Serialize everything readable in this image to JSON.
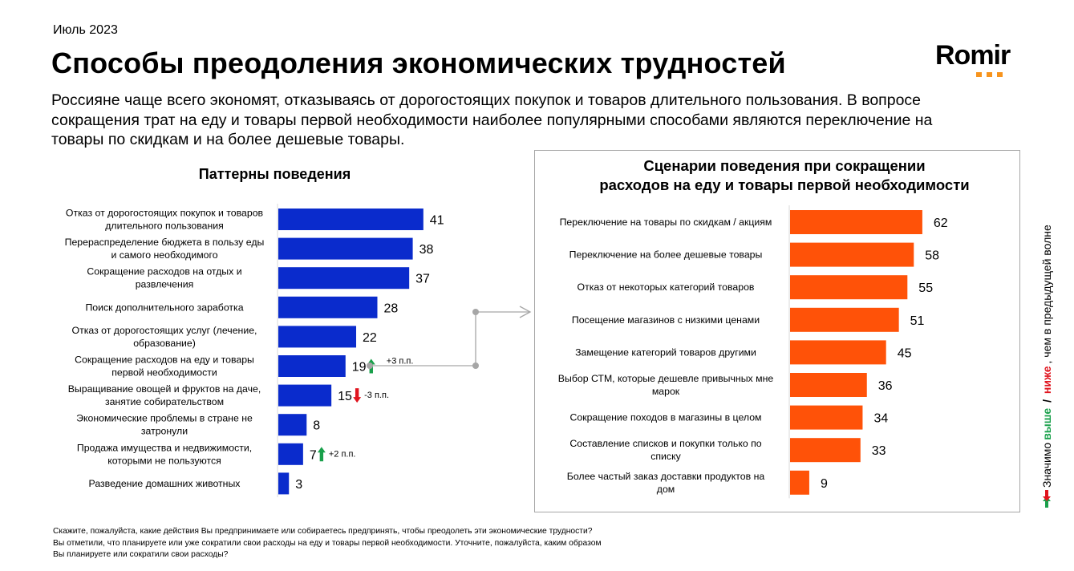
{
  "header": {
    "date": "Июль 2023",
    "title": "Способы преодоления экономических трудностей",
    "subtitle": "Россияне чаще всего экономят, отказываясь от дорогостоящих покупок и товаров длительного пользования. В вопросе сокращения трат на еду и товары первой необходимости наиболее популярными способами являются переключение на товары по скидкам и на более дешевые товары.",
    "logo_text": "Romir",
    "logo_accent": "#f7941d"
  },
  "chart_data": [
    {
      "type": "bar",
      "orientation": "horizontal",
      "title": "Паттерны поведения",
      "color": "#0a2bcc",
      "xlim": [
        0,
        45
      ],
      "categories": [
        "Отказ от дорогостоящих покупок и товаров длительного пользования",
        "Перераспределение бюджета в пользу еды и самого необходимого",
        "Сокращение расходов на отдых и развлечения",
        "Поиск дополнительного заработка",
        "Отказ от дорогостоящих услуг (лечение, образование)",
        "Сокращение расходов на еду и товары первой необходимости",
        "Выращивание овощей и фруктов на даче, занятие собирательством",
        "Экономические проблемы в стране не затронули",
        "Продажа имущества и недвижимости, которыми не пользуются",
        "Разведение домашних животных"
      ],
      "label_lines": [
        [
          "Отказ от дорогостоящих покупок и товаров",
          "длительного пользования"
        ],
        [
          "Перераспределение бюджета в пользу еды",
          "и самого необходимого"
        ],
        [
          "Сокращение расходов на отдых и",
          "развлечения"
        ],
        [
          "Поиск дополнительного заработка"
        ],
        [
          "Отказ от дорогостоящих услуг (лечение,",
          "образование)"
        ],
        [
          "Сокращение расходов на еду и товары",
          "первой необходимости"
        ],
        [
          "Выращивание овощей и фруктов на даче,",
          "занятие собирательством"
        ],
        [
          "Экономические проблемы в стране не",
          "затронули"
        ],
        [
          "Продажа имущества и недвижимости,",
          "которыми не пользуются"
        ],
        [
          "Разведение домашних животных"
        ]
      ],
      "values": [
        41,
        38,
        37,
        28,
        22,
        19,
        15,
        8,
        7,
        3
      ],
      "changes": [
        null,
        null,
        null,
        null,
        null,
        {
          "direction": "up",
          "text": "+3 п.п."
        },
        {
          "direction": "down",
          "text": "-3 п.п."
        },
        null,
        {
          "direction": "up",
          "text": "+2 п.п."
        },
        null
      ]
    },
    {
      "type": "bar",
      "orientation": "horizontal",
      "title": "Сценарии поведения при сокращении расходов на еду и товары первой необходимости",
      "title_lines": [
        "Сценарии поведения при сокращении",
        "расходов на еду и товары первой необходимости"
      ],
      "color": "#ff5208",
      "xlim": [
        0,
        70
      ],
      "categories": [
        "Переключение на товары по скидкам / акциям",
        "Переключение на более дешевые товары",
        "Отказ от некоторых категорий товаров",
        "Посещение магазинов с низкими ценами",
        "Замещение категорий товаров другими",
        "Выбор СТМ, которые дешевле привычных мне марок",
        "Сокращение походов в магазины в целом",
        "Составление списков и покупки только по списку",
        "Более частый заказ доставки продуктов на дом"
      ],
      "label_lines": [
        [
          "Переключение на товары по скидкам / акциям"
        ],
        [
          "Переключение на более дешевые товары"
        ],
        [
          "Отказ от некоторых категорий товаров"
        ],
        [
          "Посещение магазинов с низкими ценами"
        ],
        [
          "Замещение категорий товаров другими"
        ],
        [
          "Выбор СТМ, которые дешевле привычных мне",
          "марок"
        ],
        [
          "Сокращение походов в магазины в целом"
        ],
        [
          "Составление списков и покупки только по",
          "списку"
        ],
        [
          "Более частый заказ доставки продуктов на",
          "дом"
        ]
      ],
      "values": [
        62,
        58,
        55,
        51,
        45,
        36,
        34,
        33,
        9
      ]
    }
  ],
  "colors": {
    "up": "#19a04b",
    "down": "#e0141e",
    "connector": "#a6a6a6"
  },
  "legend": {
    "prefix": "Значимо",
    "higher": "выше",
    "separator": " / ",
    "lower": "ниже",
    "suffix": ", чем в предыдущей волне"
  },
  "footnote": {
    "lines": [
      "Скажите, пожалуйста, какие действия Вы предпринимаете или собираетесь предпринять, чтобы преодолеть эти экономические трудности?",
      "Вы отметили, что планируете или уже сократили свои расходы на еду и товары первой необходимости. Уточните, пожалуйста, каким образом",
      "Вы планируете или сократили свои расходы?"
    ]
  }
}
